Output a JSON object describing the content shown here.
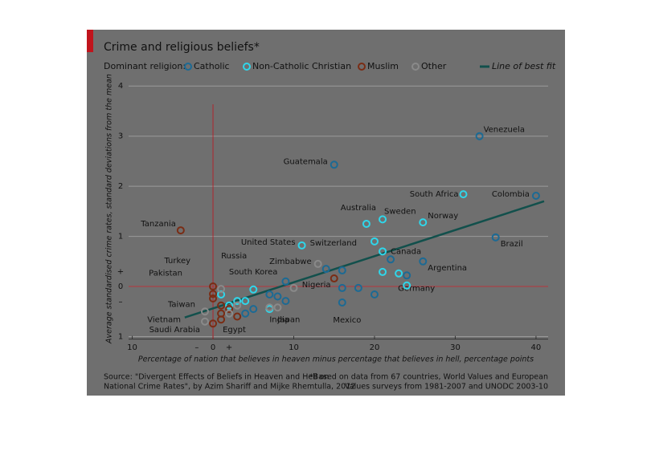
{
  "chart_data": {
    "type": "scatter",
    "title": "Crime and religious beliefs*",
    "legend_prefix": "Dominant religion:",
    "x_label": "Percentage of nation that believes in heaven minus percentage that believes in hell, percentage points",
    "y_label": "Average standardised crime rates, standard deviations from the mean",
    "source": [
      "Source: \"Divergent Effects of Beliefs in Heaven and Hell on",
      "National Crime Rates\", by Azim Shariff and Mijke Rhemtulla, 2012"
    ],
    "footnote": [
      "*Based on data from 67 countries, World Values and European",
      "Values surveys from 1981-2007 and UNODC 2003-10"
    ],
    "xlim": [
      -11,
      41.5
    ],
    "ylim": [
      -1.05,
      4.1
    ],
    "xticks": [
      {
        "value": -10,
        "label": "10"
      },
      0,
      10,
      20,
      30,
      40
    ],
    "yticks": [
      {
        "value": -1,
        "label": "1"
      },
      0,
      1,
      2,
      3,
      4
    ],
    "x_sign_ticks": [
      {
        "value": -2,
        "label": "–"
      },
      {
        "value": 2,
        "label": "+"
      }
    ],
    "y_sign_ticks": [
      {
        "value": 0.3,
        "label": "+"
      },
      {
        "value": -0.3,
        "label": "–"
      }
    ],
    "grid": true,
    "series": [
      {
        "name": "Catholic",
        "color": "#1c6a94",
        "x": [
          33,
          15,
          40,
          35,
          26,
          9,
          18,
          24,
          16,
          16,
          16,
          20,
          22,
          9,
          8,
          5,
          4,
          7,
          14
        ],
        "values": [
          3.0,
          2.43,
          1.81,
          0.98,
          0.5,
          0.1,
          -0.03,
          0.22,
          0.32,
          -0.03,
          -0.32,
          -0.16,
          0.54,
          -0.29,
          -0.2,
          -0.45,
          -0.54,
          -0.16,
          0.35
        ],
        "labels": [
          "Venezuela",
          "Guatemala",
          "Colombia",
          "Brazil",
          "Argentina",
          "South Korea",
          "Mexico",
          "Germany",
          null,
          null,
          null,
          null,
          null,
          null,
          null,
          null,
          null,
          null,
          null
        ]
      },
      {
        "name": "Non-Catholic Christian",
        "color": "#2fd6ea",
        "x": [
          31,
          19,
          21,
          26,
          11,
          20,
          21,
          21,
          23,
          24,
          5,
          4,
          2,
          1,
          3,
          7
        ],
        "values": [
          1.84,
          1.25,
          1.34,
          1.28,
          0.82,
          0.9,
          0.7,
          0.29,
          0.26,
          0.02,
          -0.06,
          -0.29,
          -0.38,
          -0.16,
          -0.29,
          -0.45
        ],
        "labels": [
          "South Africa",
          "Australia",
          "Sweden",
          "Norway",
          "United States",
          "Switzerland",
          "Canada",
          null,
          null,
          null,
          null,
          null,
          null,
          null,
          null,
          null
        ]
      },
      {
        "name": "Muslim",
        "color": "#7a2c14",
        "x": [
          -4,
          15,
          0,
          0,
          0,
          1,
          0,
          1,
          1,
          3,
          2
        ],
        "values": [
          1.12,
          0.16,
          0.0,
          -0.15,
          -0.74,
          -0.66,
          -0.24,
          -0.38,
          -0.54,
          -0.6,
          -0.45
        ],
        "labels": [
          "Tanzania",
          "Nigeria",
          "Turkey",
          "Pakistan",
          "Saudi Arabia",
          "Egypt",
          null,
          null,
          null,
          null,
          null
        ]
      },
      {
        "name": "Other",
        "color": "#8a8a8a",
        "x": [
          13,
          8,
          7,
          1,
          -1,
          -1,
          10,
          3,
          2
        ],
        "values": [
          0.45,
          -0.42,
          -0.42,
          -0.05,
          -0.5,
          -0.7,
          -0.03,
          -0.38,
          -0.54
        ],
        "labels": [
          "Zimbabwe",
          "Japan",
          "India",
          "Russia",
          "Taiwan",
          "Vietnam",
          null,
          null,
          null
        ]
      }
    ],
    "fit": {
      "name": "Line of best fit",
      "color": "#12504c",
      "x": [
        -3.5,
        41
      ],
      "values": [
        -0.62,
        1.7
      ]
    }
  }
}
